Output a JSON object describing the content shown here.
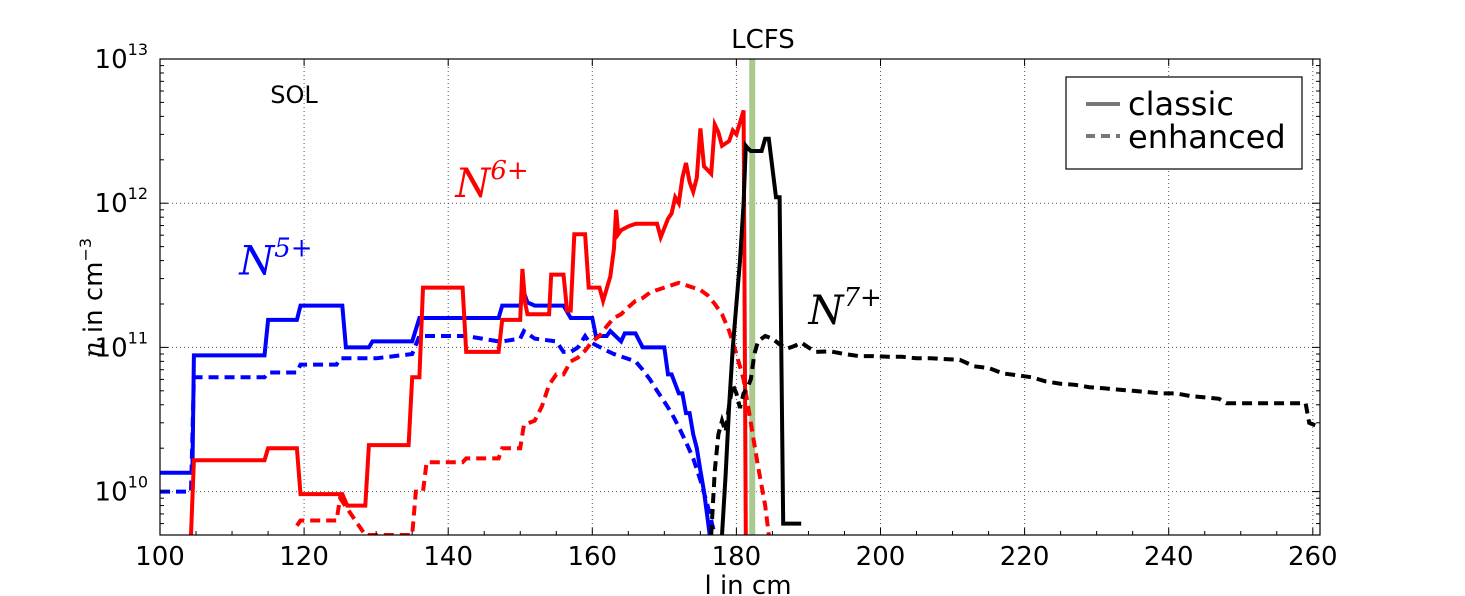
{
  "chart_data": {
    "type": "line",
    "title": "",
    "xlabel": "l in cm",
    "ylabel_math": "n",
    "ylabel_text": " in cm",
    "ylabel_exp": "−3",
    "yscale": "log",
    "xlim": [
      100,
      261
    ],
    "ylim": [
      5000000000.0,
      10000000000000.0
    ],
    "x_ticks": [
      100,
      120,
      140,
      160,
      180,
      200,
      220,
      240,
      260
    ],
    "y_ticks": [
      {
        "value": 10000000000.0,
        "base": "10",
        "exp": "10"
      },
      {
        "value": 100000000000.0,
        "base": "10",
        "exp": "11"
      },
      {
        "value": 1000000000000.0,
        "base": "10",
        "exp": "12"
      },
      {
        "value": 10000000000000.0,
        "base": "10",
        "exp": "13"
      }
    ],
    "grid": true,
    "annotations": {
      "lcfs": {
        "label": "LCFS",
        "x": 182.2,
        "color": "#a9c98e"
      },
      "sol": {
        "label": "SOL"
      },
      "species": [
        {
          "base": "N",
          "sup": "5+",
          "color": "#0000ff",
          "x": 111,
          "y": 320000000000.0
        },
        {
          "base": "N",
          "sup": "6+",
          "color": "#ff0000",
          "x": 141,
          "y": 1100000000000.0
        },
        {
          "base": "N",
          "sup": "7+",
          "color": "#000000",
          "x": 190,
          "y": 145000000000.0
        }
      ]
    },
    "legend": {
      "position": "top-right",
      "entries": [
        {
          "label": "classic",
          "style": "solid",
          "color": "#777777"
        },
        {
          "label": "enhanced",
          "style": "dashed",
          "color": "#777777"
        }
      ]
    },
    "series": [
      {
        "name": "N5+ classic",
        "color": "#0000ff",
        "style": "solid",
        "x": [
          100,
          104.5,
          104.7,
          114.5,
          115,
          119,
          119.5,
          125.3,
          125.8,
          129,
          129.5,
          135,
          136,
          142,
          142.5,
          147,
          147.5,
          150,
          150.5,
          151,
          152,
          156,
          157,
          160,
          160.5,
          162,
          162.5,
          164,
          164.5,
          166,
          167,
          170,
          170.5,
          171,
          172,
          172.5,
          173,
          173.5,
          174,
          174.5,
          175,
          175.5,
          176,
          176.3
        ],
        "y": [
          13500000000.0,
          13500000000.0,
          88000000000.0,
          88000000000.0,
          155000000000.0,
          155000000000.0,
          195000000000.0,
          195000000000.0,
          100000000000.0,
          100000000000.0,
          110000000000.0,
          110000000000.0,
          160000000000.0,
          160000000000.0,
          160000000000.0,
          160000000000.0,
          195000000000.0,
          195000000000.0,
          240000000000.0,
          205000000000.0,
          195000000000.0,
          195000000000.0,
          160000000000.0,
          160000000000.0,
          120000000000.0,
          120000000000.0,
          130000000000.0,
          110000000000.0,
          125000000000.0,
          125000000000.0,
          100000000000.0,
          100000000000.0,
          65000000000.0,
          65000000000.0,
          48000000000.0,
          48000000000.0,
          35000000000.0,
          35000000000.0,
          25000000000.0,
          20000000000.0,
          14000000000.0,
          10000000000.0,
          6500000000.0,
          5000000000.0
        ]
      },
      {
        "name": "N5+ enhanced",
        "color": "#0000ff",
        "style": "dashed",
        "x": [
          100,
          104.3,
          104.7,
          114.5,
          115,
          119,
          119.5,
          124.5,
          125,
          130,
          135,
          136,
          142,
          142.5,
          147,
          147.5,
          150,
          150.5,
          152,
          155,
          156,
          157,
          158,
          159,
          159.5,
          162,
          163,
          166,
          167,
          168,
          169,
          170,
          171,
          172,
          173,
          174,
          175,
          176,
          177
        ],
        "y": [
          10000000000.0,
          10000000000.0,
          62000000000.0,
          62000000000.0,
          67000000000.0,
          67000000000.0,
          76000000000.0,
          76000000000.0,
          84000000000.0,
          84000000000.0,
          90000000000.0,
          120000000000.0,
          120000000000.0,
          120000000000.0,
          110000000000.0,
          110000000000.0,
          115000000000.0,
          130000000000.0,
          115000000000.0,
          110000000000.0,
          93000000000.0,
          93000000000.0,
          100000000000.0,
          120000000000.0,
          110000000000.0,
          95000000000.0,
          90000000000.0,
          80000000000.0,
          70000000000.0,
          60000000000.0,
          50000000000.0,
          42000000000.0,
          35000000000.0,
          28000000000.0,
          22000000000.0,
          17000000000.0,
          12000000000.0,
          8000000000.0,
          5000000000.0
        ]
      },
      {
        "name": "N6+ classic",
        "color": "#ff0000",
        "style": "solid",
        "x": [
          104.3,
          104.7,
          114.5,
          115,
          119,
          119.5,
          125.3,
          126,
          128.5,
          129,
          134.5,
          135,
          136,
          136.5,
          142,
          142.5,
          147,
          147.5,
          150,
          150.3,
          150.7,
          151,
          154,
          154.3,
          156,
          156.5,
          157,
          157.5,
          159,
          159.5,
          161,
          161.5,
          162.5,
          163,
          163.3,
          163.6,
          164,
          165,
          166,
          166.5,
          169,
          169.5,
          170.5,
          171,
          171.5,
          172,
          172.5,
          173,
          173.5,
          174,
          174.5,
          175,
          175.5,
          176,
          176.5,
          177,
          177.5,
          178,
          179,
          179.5,
          180,
          181,
          181.3
        ],
        "y": [
          5000000000.0,
          16500000000.0,
          16500000000.0,
          20000000000.0,
          20000000000.0,
          9600000000.0,
          9600000000.0,
          8000000000.0,
          8000000000.0,
          21000000000.0,
          21000000000.0,
          62000000000.0,
          62000000000.0,
          260000000000.0,
          260000000000.0,
          93000000000.0,
          93000000000.0,
          155000000000.0,
          155000000000.0,
          350000000000.0,
          200000000000.0,
          170000000000.0,
          170000000000.0,
          320000000000.0,
          320000000000.0,
          180000000000.0,
          180000000000.0,
          610000000000.0,
          610000000000.0,
          260000000000.0,
          260000000000.0,
          210000000000.0,
          310000000000.0,
          480000000000.0,
          900000000000.0,
          610000000000.0,
          650000000000.0,
          690000000000.0,
          720000000000.0,
          720000000000.0,
          720000000000.0,
          580000000000.0,
          780000000000.0,
          850000000000.0,
          1100000000000.0,
          1000000000000.0,
          1500000000000.0,
          1900000000000.0,
          1400000000000.0,
          1200000000000.0,
          1500000000000.0,
          3300000000000.0,
          1800000000000.0,
          1700000000000.0,
          1600000000000.0,
          3500000000000.0,
          3100000000000.0,
          2500000000000.0,
          2700000000000.0,
          3200000000000.0,
          3000000000000.0,
          4400000000000.0,
          5000000000.0
        ]
      },
      {
        "name": "N6+ enhanced",
        "color": "#ff0000",
        "style": "dashed",
        "x": [
          119,
          119.5,
          124.5,
          125,
          128.5,
          135,
          135.5,
          136.5,
          137,
          142,
          142.5,
          147,
          147.5,
          150,
          150.5,
          152,
          153,
          154,
          155,
          156,
          157,
          158,
          159,
          160,
          161,
          162,
          163,
          164,
          165,
          166,
          167,
          168,
          169,
          170,
          171,
          172,
          173,
          174,
          175,
          176,
          177,
          178,
          179,
          180,
          181,
          182,
          183,
          184,
          184.5
        ],
        "y": [
          5800000000.0,
          6300000000.0,
          6300000000.0,
          9000000000.0,
          5000000000.0,
          5000000000.0,
          10000000000.0,
          10000000000.0,
          16000000000.0,
          16000000000.0,
          17000000000.0,
          17000000000.0,
          20000000000.0,
          20000000000.0,
          29000000000.0,
          31000000000.0,
          39000000000.0,
          55000000000.0,
          65000000000.0,
          65000000000.0,
          80000000000.0,
          85000000000.0,
          95000000000.0,
          110000000000.0,
          120000000000.0,
          140000000000.0,
          160000000000.0,
          170000000000.0,
          190000000000.0,
          210000000000.0,
          220000000000.0,
          240000000000.0,
          250000000000.0,
          260000000000.0,
          270000000000.0,
          280000000000.0,
          270000000000.0,
          260000000000.0,
          250000000000.0,
          230000000000.0,
          200000000000.0,
          170000000000.0,
          130000000000.0,
          90000000000.0,
          60000000000.0,
          30000000000.0,
          15000000000.0,
          8000000000.0,
          5000000000.0
        ]
      },
      {
        "name": "N7+ classic",
        "color": "#000000",
        "style": "solid",
        "x": [
          178,
          178.5,
          179,
          179.5,
          180,
          180.5,
          181,
          181.3,
          181.6,
          182,
          183.5,
          184,
          184.5,
          185.5,
          186,
          186.5,
          187,
          189
        ],
        "y": [
          5000000000.0,
          13000000000.0,
          40000000000.0,
          100000000000.0,
          200000000000.0,
          400000000000.0,
          1000000000000.0,
          2500000000000.0,
          2400000000000.0,
          2300000000000.0,
          2300000000000.0,
          2800000000000.0,
          2800000000000.0,
          1100000000000.0,
          1100000000000.0,
          6000000000.0,
          6000000000.0,
          6000000000.0
        ]
      },
      {
        "name": "N7+ enhanced",
        "color": "#000000",
        "style": "dashed",
        "x": [
          176.5,
          177,
          177.5,
          178,
          178.5,
          179,
          179.5,
          180,
          180.5,
          181,
          181.5,
          182,
          182.5,
          183,
          183.5,
          184,
          185,
          186,
          187,
          188,
          189,
          190,
          191,
          193,
          195,
          197,
          199,
          201,
          203,
          205,
          207,
          209,
          211,
          213,
          215,
          217,
          219,
          221,
          223,
          225,
          227,
          229,
          231,
          233,
          235,
          237,
          239,
          241,
          243,
          245,
          247,
          248,
          249,
          251,
          253,
          255,
          257,
          259,
          259.5,
          260.2,
          261
        ],
        "y": [
          5000000000.0,
          14000000000.0,
          25000000000.0,
          31000000000.0,
          26000000000.0,
          40000000000.0,
          55000000000.0,
          48000000000.0,
          38000000000.0,
          48000000000.0,
          52000000000.0,
          60000000000.0,
          90000000000.0,
          110000000000.0,
          115000000000.0,
          120000000000.0,
          115000000000.0,
          105000000000.0,
          98000000000.0,
          102000000000.0,
          108000000000.0,
          100000000000.0,
          93000000000.0,
          94000000000.0,
          90000000000.0,
          87000000000.0,
          87000000000.0,
          86000000000.0,
          86000000000.0,
          84000000000.0,
          84000000000.0,
          83000000000.0,
          82000000000.0,
          74000000000.0,
          72000000000.0,
          66000000000.0,
          64000000000.0,
          62000000000.0,
          58000000000.0,
          56000000000.0,
          55000000000.0,
          53000000000.0,
          52000000000.0,
          51000000000.0,
          50000000000.0,
          49000000000.0,
          48000000000.0,
          48000000000.0,
          46000000000.0,
          45000000000.0,
          44000000000.0,
          41000000000.0,
          41000000000.0,
          41000000000.0,
          41000000000.0,
          41000000000.0,
          41000000000.0,
          41000000000.0,
          30000000000.0,
          29000000000.0,
          28000000000.0
        ]
      }
    ]
  }
}
